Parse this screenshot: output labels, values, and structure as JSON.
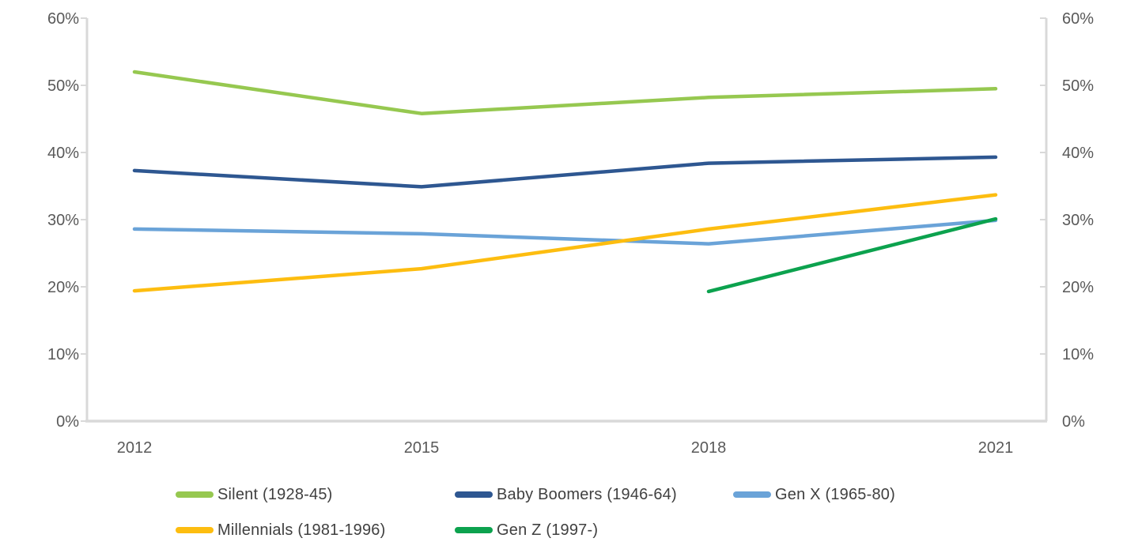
{
  "chart_data": {
    "type": "line",
    "title": "",
    "categories": [
      "2012",
      "2015",
      "2018",
      "2021"
    ],
    "series": [
      {
        "name": "Silent (1928-45)",
        "color": "#96c850",
        "values": [
          52.0,
          45.8,
          48.2,
          49.5
        ]
      },
      {
        "name": "Baby Boomers (1946-64)",
        "color": "#2e5791",
        "values": [
          37.3,
          34.9,
          38.4,
          39.3
        ]
      },
      {
        "name": "Gen X (1965-80)",
        "color": "#6aa3d8",
        "values": [
          28.6,
          27.9,
          26.4,
          29.9
        ]
      },
      {
        "name": "Millennials (1981-1996)",
        "color": "#fdbd10",
        "values": [
          19.4,
          22.7,
          28.6,
          33.7
        ]
      },
      {
        "name": "Gen Z (1997-)",
        "color": "#0ca24e",
        "values": [
          null,
          null,
          19.3,
          30.1
        ]
      }
    ],
    "xlabel": "",
    "ylabel": "",
    "ylim": [
      0,
      60
    ],
    "y_tick_step": 10,
    "y_ticks": [
      "0%",
      "10%",
      "20%",
      "30%",
      "40%",
      "50%",
      "60%"
    ],
    "dual_y_axis": true,
    "grid": false,
    "legend_position": "bottom",
    "style": {
      "axis_color": "#d9d9d9",
      "tick_label_color": "#595959",
      "legend_text_color": "#404040",
      "background": "#ffffff",
      "line_width": 4.5
    }
  }
}
